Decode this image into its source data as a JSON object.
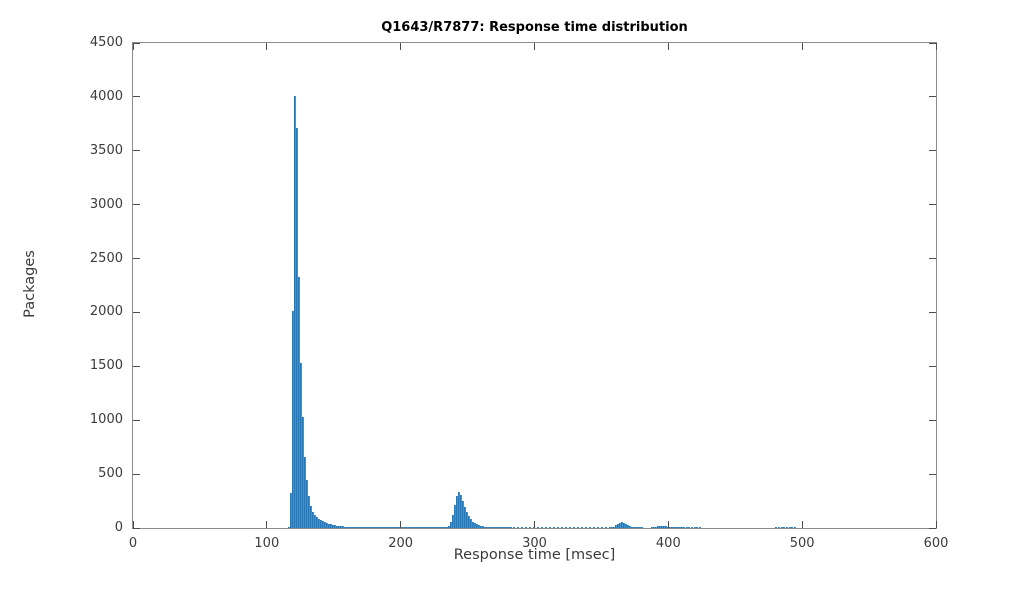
{
  "chart_data": {
    "type": "bar",
    "title": "Q1643/R7877: Response time distribution",
    "xlabel": "Response time [msec]",
    "ylabel": "Packages",
    "xlim": [
      0,
      600
    ],
    "ylim": [
      0,
      4500
    ],
    "xticks": [
      0,
      100,
      200,
      300,
      400,
      500,
      600
    ],
    "yticks": [
      0,
      500,
      1000,
      1500,
      2000,
      2500,
      3000,
      3500,
      4000,
      4500
    ],
    "grid": false,
    "legend": "none",
    "box": "full-frame-mirrored-inward-ticks",
    "bin_width": 1.5,
    "bars": [
      [
        115.5,
        12
      ],
      [
        117,
        325
      ],
      [
        118.5,
        2010
      ],
      [
        120,
        4010
      ],
      [
        121.5,
        3715
      ],
      [
        123,
        2330
      ],
      [
        124.5,
        1535
      ],
      [
        126,
        1030
      ],
      [
        127.5,
        660
      ],
      [
        129,
        445
      ],
      [
        130.5,
        295
      ],
      [
        132,
        205
      ],
      [
        133.5,
        152
      ],
      [
        135,
        120
      ],
      [
        136.5,
        100
      ],
      [
        138,
        85
      ],
      [
        139.5,
        72
      ],
      [
        141,
        62
      ],
      [
        142.5,
        53
      ],
      [
        144,
        46
      ],
      [
        145.5,
        40
      ],
      [
        147,
        34
      ],
      [
        148.5,
        29
      ],
      [
        150,
        25
      ],
      [
        151.5,
        21
      ],
      [
        153,
        18
      ],
      [
        154.5,
        16
      ],
      [
        156,
        14
      ],
      [
        157.5,
        12
      ],
      [
        159,
        11
      ],
      [
        160.5,
        10
      ],
      [
        162,
        9
      ],
      [
        163.5,
        8
      ],
      [
        165,
        7
      ],
      [
        166.5,
        7
      ],
      [
        168,
        6
      ],
      [
        169.5,
        6
      ],
      [
        171,
        5
      ],
      [
        172.5,
        5
      ],
      [
        174,
        5
      ],
      [
        175.5,
        4
      ],
      [
        177,
        4
      ],
      [
        178.5,
        4
      ],
      [
        180,
        4
      ],
      [
        181.5,
        3
      ],
      [
        183,
        3
      ],
      [
        184.5,
        3
      ],
      [
        186,
        3
      ],
      [
        187.5,
        3
      ],
      [
        189,
        2
      ],
      [
        190.5,
        2
      ],
      [
        192,
        2
      ],
      [
        193.5,
        2
      ],
      [
        195,
        2
      ],
      [
        196.5,
        2
      ],
      [
        198,
        2
      ],
      [
        199.5,
        2
      ],
      [
        201,
        2
      ],
      [
        202.5,
        1
      ],
      [
        204,
        2
      ],
      [
        205.5,
        1
      ],
      [
        207,
        2
      ],
      [
        208.5,
        1
      ],
      [
        210,
        2
      ],
      [
        211.5,
        1
      ],
      [
        213,
        2
      ],
      [
        214.5,
        1
      ],
      [
        216,
        2
      ],
      [
        217.5,
        1
      ],
      [
        219,
        2
      ],
      [
        220.5,
        1
      ],
      [
        222,
        2
      ],
      [
        223.5,
        1
      ],
      [
        225,
        2
      ],
      [
        226.5,
        1
      ],
      [
        228,
        2
      ],
      [
        229.5,
        2
      ],
      [
        231,
        3
      ],
      [
        232.5,
        5
      ],
      [
        234,
        9
      ],
      [
        235.5,
        22
      ],
      [
        237,
        55
      ],
      [
        238.5,
        120
      ],
      [
        240,
        215
      ],
      [
        241.5,
        295
      ],
      [
        243,
        330
      ],
      [
        244.5,
        302
      ],
      [
        246,
        248
      ],
      [
        247.5,
        195
      ],
      [
        249,
        150
      ],
      [
        250.5,
        112
      ],
      [
        252,
        82
      ],
      [
        253.5,
        60
      ],
      [
        255,
        45
      ],
      [
        256.5,
        34
      ],
      [
        258,
        26
      ],
      [
        259.5,
        20
      ],
      [
        261,
        15
      ],
      [
        262.5,
        12
      ],
      [
        264,
        10
      ],
      [
        265.5,
        8
      ],
      [
        267,
        6
      ],
      [
        268.5,
        5
      ],
      [
        270,
        4
      ],
      [
        271.5,
        4
      ],
      [
        273,
        3
      ],
      [
        274.5,
        3
      ],
      [
        276,
        2
      ],
      [
        277.5,
        2
      ],
      [
        279,
        2
      ],
      [
        280.5,
        1
      ],
      [
        282,
        1
      ],
      [
        284,
        1
      ],
      [
        287,
        1
      ],
      [
        290,
        1
      ],
      [
        293,
        1
      ],
      [
        296,
        1
      ],
      [
        299,
        1
      ],
      [
        302,
        1
      ],
      [
        305,
        1
      ],
      [
        308,
        1
      ],
      [
        311,
        1
      ],
      [
        314,
        1
      ],
      [
        317,
        1
      ],
      [
        320,
        1
      ],
      [
        323,
        1
      ],
      [
        326,
        1
      ],
      [
        329,
        1
      ],
      [
        332,
        1
      ],
      [
        335,
        1
      ],
      [
        338,
        1
      ],
      [
        341,
        1
      ],
      [
        344,
        1
      ],
      [
        347,
        1
      ],
      [
        350,
        2
      ],
      [
        353,
        2
      ],
      [
        355.5,
        3
      ],
      [
        357,
        5
      ],
      [
        358.5,
        12
      ],
      [
        360,
        24
      ],
      [
        361.5,
        36
      ],
      [
        363,
        48
      ],
      [
        364.5,
        52
      ],
      [
        366,
        46
      ],
      [
        367.5,
        36
      ],
      [
        369,
        26
      ],
      [
        370.5,
        18
      ],
      [
        372,
        12
      ],
      [
        373.5,
        8
      ],
      [
        375,
        5
      ],
      [
        376.5,
        3
      ],
      [
        378,
        2
      ],
      [
        379.5,
        1
      ],
      [
        387,
        3
      ],
      [
        388.5,
        6
      ],
      [
        390,
        10
      ],
      [
        391.5,
        14
      ],
      [
        393,
        18
      ],
      [
        394.5,
        22
      ],
      [
        396,
        20
      ],
      [
        397.5,
        16
      ],
      [
        399,
        12
      ],
      [
        400.5,
        9
      ],
      [
        402,
        7
      ],
      [
        403.5,
        5
      ],
      [
        405,
        4
      ],
      [
        406.5,
        3
      ],
      [
        408,
        2
      ],
      [
        409.5,
        2
      ],
      [
        411,
        1
      ],
      [
        413,
        1
      ],
      [
        415,
        1
      ],
      [
        417,
        1
      ],
      [
        419,
        1
      ],
      [
        421,
        2
      ],
      [
        423,
        1
      ],
      [
        480,
        1
      ],
      [
        482,
        2
      ],
      [
        484,
        1
      ],
      [
        486,
        2
      ],
      [
        488,
        1
      ],
      [
        490,
        2
      ],
      [
        492,
        1
      ],
      [
        494,
        1
      ]
    ],
    "colors": {
      "bar_face": "#4191CB",
      "bar_edge": "#2878B5",
      "axis_frame": "#8C8C8C",
      "tick_mark": "#4D4D4D",
      "tick_label": "#3B3B3B",
      "title": "#000000",
      "background": "#FFFFFF"
    }
  }
}
